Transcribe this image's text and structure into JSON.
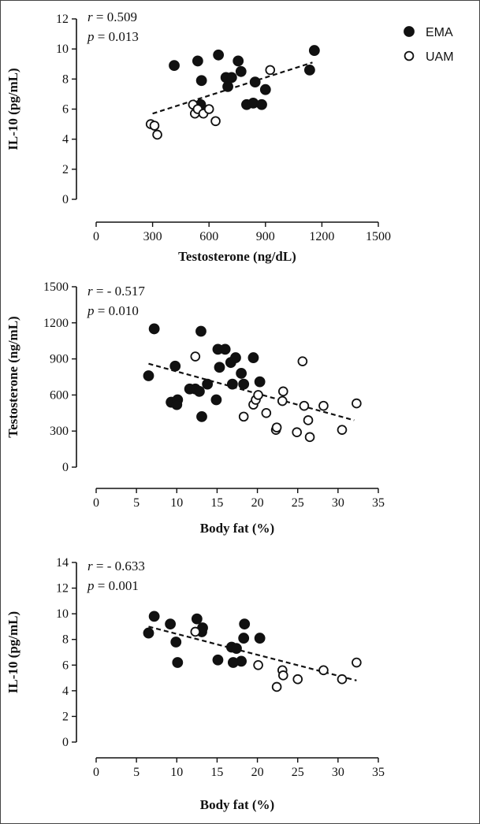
{
  "legend": {
    "ema_label": "EMA",
    "uam_label": "UAM"
  },
  "colors": {
    "ink": "#111111",
    "open_fill": "#ffffff",
    "frame": "#444444"
  },
  "chart_data": [
    {
      "type": "scatter",
      "id": "top",
      "xlabel": "Testosterone (ng/dL)",
      "ylabel": "IL-10 (pg/mL)",
      "stat_r_label": "r",
      "stat_r_value": " = 0.509",
      "stat_p_label": "p",
      "stat_p_value": " = 0.013",
      "xlim": [
        0,
        1500
      ],
      "ylim": [
        0,
        12
      ],
      "xticks": [
        0,
        300,
        600,
        900,
        1200,
        1500
      ],
      "yticks": [
        0,
        2,
        4,
        6,
        8,
        10,
        12
      ],
      "trend": {
        "x": [
          300,
          1150
        ],
        "y": [
          5.7,
          9.1
        ]
      },
      "series": [
        {
          "name": "EMA",
          "filled": true,
          "points": [
            {
              "x": 415,
              "y": 8.9
            },
            {
              "x": 540,
              "y": 9.2
            },
            {
              "x": 560,
              "y": 7.9
            },
            {
              "x": 650,
              "y": 9.6
            },
            {
              "x": 690,
              "y": 8.1
            },
            {
              "x": 700,
              "y": 7.5
            },
            {
              "x": 720,
              "y": 8.1
            },
            {
              "x": 755,
              "y": 9.2
            },
            {
              "x": 770,
              "y": 8.5
            },
            {
              "x": 800,
              "y": 6.3
            },
            {
              "x": 835,
              "y": 6.4
            },
            {
              "x": 845,
              "y": 7.8
            },
            {
              "x": 880,
              "y": 6.3
            },
            {
              "x": 900,
              "y": 7.3
            },
            {
              "x": 1135,
              "y": 8.6
            },
            {
              "x": 1160,
              "y": 9.9
            },
            {
              "x": 555,
              "y": 6.3
            }
          ]
        },
        {
          "name": "UAM",
          "filled": false,
          "points": [
            {
              "x": 290,
              "y": 5.0
            },
            {
              "x": 310,
              "y": 4.9
            },
            {
              "x": 325,
              "y": 4.3
            },
            {
              "x": 515,
              "y": 6.3
            },
            {
              "x": 525,
              "y": 5.7
            },
            {
              "x": 540,
              "y": 6.0
            },
            {
              "x": 570,
              "y": 5.7
            },
            {
              "x": 600,
              "y": 6.0
            },
            {
              "x": 635,
              "y": 5.2
            },
            {
              "x": 925,
              "y": 8.6
            }
          ]
        }
      ]
    },
    {
      "type": "scatter",
      "id": "middle",
      "xlabel": "Body fat (%)",
      "ylabel": "Testosterone (ng/mL)",
      "stat_r_label": "r",
      "stat_r_value": " = - 0.517",
      "stat_p_label": "p",
      "stat_p_value": " = 0.010",
      "xlim": [
        0,
        35
      ],
      "ylim": [
        0,
        1500
      ],
      "xticks": [
        0,
        5,
        10,
        15,
        20,
        25,
        30,
        35
      ],
      "yticks": [
        0,
        300,
        600,
        900,
        1200,
        1500
      ],
      "trend": {
        "x": [
          6.5,
          32
        ],
        "y": [
          860,
          390
        ]
      },
      "series": [
        {
          "name": "EMA",
          "filled": true,
          "points": [
            {
              "x": 6.5,
              "y": 760
            },
            {
              "x": 7.2,
              "y": 1150
            },
            {
              "x": 9.3,
              "y": 540
            },
            {
              "x": 9.8,
              "y": 840
            },
            {
              "x": 10.1,
              "y": 560
            },
            {
              "x": 10.0,
              "y": 520
            },
            {
              "x": 11.6,
              "y": 650
            },
            {
              "x": 12.3,
              "y": 650
            },
            {
              "x": 12.8,
              "y": 630
            },
            {
              "x": 13.0,
              "y": 1130
            },
            {
              "x": 13.1,
              "y": 420
            },
            {
              "x": 13.8,
              "y": 690
            },
            {
              "x": 14.9,
              "y": 560
            },
            {
              "x": 15.1,
              "y": 980
            },
            {
              "x": 15.3,
              "y": 830
            },
            {
              "x": 16.0,
              "y": 980
            },
            {
              "x": 16.7,
              "y": 870
            },
            {
              "x": 16.9,
              "y": 690
            },
            {
              "x": 17.3,
              "y": 910
            },
            {
              "x": 18.0,
              "y": 780
            },
            {
              "x": 18.3,
              "y": 690
            },
            {
              "x": 19.5,
              "y": 910
            },
            {
              "x": 20.3,
              "y": 710
            }
          ]
        },
        {
          "name": "UAM",
          "filled": false,
          "points": [
            {
              "x": 12.3,
              "y": 920
            },
            {
              "x": 18.3,
              "y": 420
            },
            {
              "x": 19.5,
              "y": 520
            },
            {
              "x": 19.8,
              "y": 560
            },
            {
              "x": 20.1,
              "y": 600
            },
            {
              "x": 21.1,
              "y": 450
            },
            {
              "x": 22.3,
              "y": 310
            },
            {
              "x": 22.4,
              "y": 330
            },
            {
              "x": 23.1,
              "y": 550
            },
            {
              "x": 23.2,
              "y": 630
            },
            {
              "x": 24.9,
              "y": 290
            },
            {
              "x": 25.6,
              "y": 880
            },
            {
              "x": 25.8,
              "y": 510
            },
            {
              "x": 26.3,
              "y": 390
            },
            {
              "x": 26.5,
              "y": 250
            },
            {
              "x": 28.2,
              "y": 510
            },
            {
              "x": 30.5,
              "y": 310
            },
            {
              "x": 32.3,
              "y": 530
            }
          ]
        }
      ]
    },
    {
      "type": "scatter",
      "id": "bottom",
      "xlabel": "Body fat (%)",
      "ylabel": "IL-10 (pg/mL)",
      "stat_r_label": "r",
      "stat_r_value": " = - 0.633",
      "stat_p_label": "p",
      "stat_p_value": " =  0.001",
      "xlim": [
        0,
        35
      ],
      "ylim": [
        0,
        14
      ],
      "xticks": [
        0,
        5,
        10,
        15,
        20,
        25,
        30,
        35
      ],
      "yticks": [
        0,
        2,
        4,
        6,
        8,
        10,
        12,
        14
      ],
      "trend": {
        "x": [
          6.5,
          32.3
        ],
        "y": [
          9.0,
          4.8
        ]
      },
      "series": [
        {
          "name": "EMA",
          "filled": true,
          "points": [
            {
              "x": 6.5,
              "y": 8.5
            },
            {
              "x": 7.2,
              "y": 9.8
            },
            {
              "x": 9.2,
              "y": 9.2
            },
            {
              "x": 9.9,
              "y": 7.8
            },
            {
              "x": 10.1,
              "y": 6.2
            },
            {
              "x": 12.5,
              "y": 9.6
            },
            {
              "x": 13.1,
              "y": 8.6
            },
            {
              "x": 13.2,
              "y": 8.9
            },
            {
              "x": 15.1,
              "y": 6.4
            },
            {
              "x": 16.8,
              "y": 7.4
            },
            {
              "x": 17.0,
              "y": 6.2
            },
            {
              "x": 17.4,
              "y": 7.3
            },
            {
              "x": 18.0,
              "y": 6.3
            },
            {
              "x": 18.3,
              "y": 8.1
            },
            {
              "x": 18.4,
              "y": 9.2
            },
            {
              "x": 20.3,
              "y": 8.1
            }
          ]
        },
        {
          "name": "UAM",
          "filled": false,
          "points": [
            {
              "x": 12.3,
              "y": 8.6
            },
            {
              "x": 20.1,
              "y": 6.0
            },
            {
              "x": 22.4,
              "y": 4.3
            },
            {
              "x": 23.1,
              "y": 5.6
            },
            {
              "x": 23.2,
              "y": 5.2
            },
            {
              "x": 25.0,
              "y": 4.9
            },
            {
              "x": 28.2,
              "y": 5.6
            },
            {
              "x": 30.5,
              "y": 4.9
            },
            {
              "x": 32.3,
              "y": 6.2
            }
          ]
        }
      ]
    }
  ]
}
